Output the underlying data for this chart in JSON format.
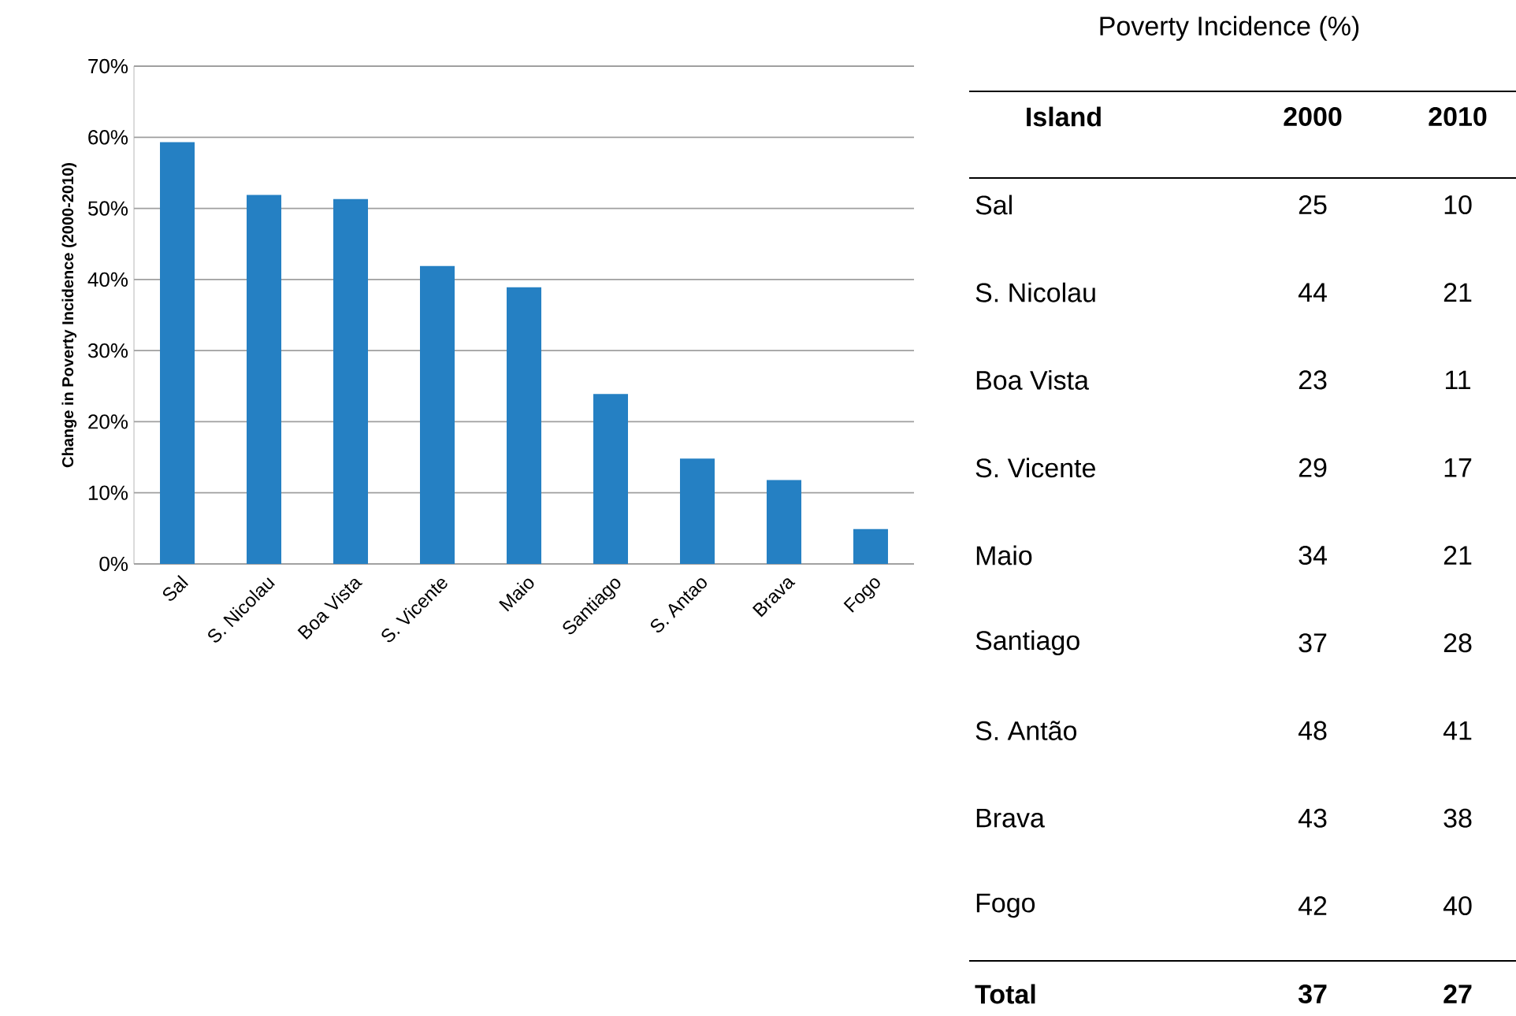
{
  "chart_data": [
    {
      "type": "bar",
      "ylabel": "Change in Poverty  Incidence (2000-2010)",
      "categories": [
        "Sal",
        "S. Nicolau",
        "Boa Vista",
        "S. Vicente",
        "Maio",
        "Santiago",
        "S. Antao",
        "Brava",
        "Fogo"
      ],
      "values": [
        59.3,
        51.9,
        51.3,
        41.9,
        38.9,
        23.9,
        14.8,
        11.8,
        4.9
      ],
      "color": "#2580c3",
      "ylim": [
        0,
        70
      ],
      "yticks": [
        {
          "value": 0,
          "label": "0%"
        },
        {
          "value": 10,
          "label": "10%"
        },
        {
          "value": 20,
          "label": "20%"
        },
        {
          "value": 30,
          "label": "30%"
        },
        {
          "value": 40,
          "label": "40%"
        },
        {
          "value": 50,
          "label": "50%"
        },
        {
          "value": 60,
          "label": "60%"
        },
        {
          "value": 70,
          "label": "70%"
        }
      ],
      "grid": "y"
    },
    {
      "type": "other",
      "title": "Poverty Incidence (%)",
      "ylabel": "Island",
      "categories": [
        "Sal",
        "S. Nicolau",
        "Boa Vista",
        "S. Vicente",
        "Maio",
        "Santiago",
        "S. Antão",
        "Brava",
        "Fogo",
        "Total"
      ],
      "series": [
        {
          "name": "2000",
          "values": [
            25,
            44,
            23,
            29,
            34,
            37,
            48,
            43,
            42,
            37
          ]
        },
        {
          "name": "2010",
          "values": [
            10,
            21,
            11,
            17,
            21,
            28,
            41,
            38,
            40,
            27
          ]
        }
      ],
      "data_labels": true
    }
  ]
}
